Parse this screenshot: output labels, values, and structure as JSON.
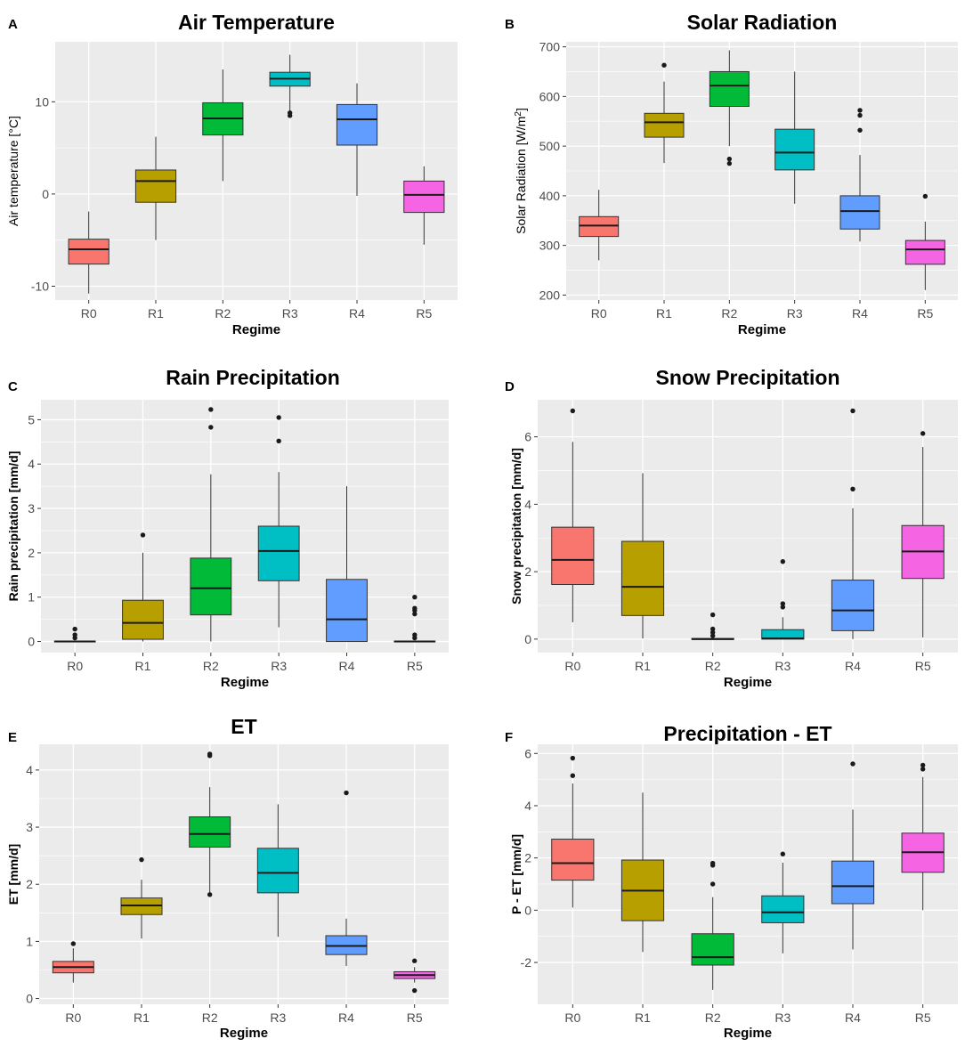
{
  "colors": {
    "panel_bg": "#ebebeb",
    "grid": "#ffffff",
    "tick_text": "#4d4d4d",
    "R0": "#f8766d",
    "R1": "#b79f00",
    "R2": "#00ba38",
    "R3": "#00bfc4",
    "R4": "#619cff",
    "R5": "#f564e3"
  },
  "chart_data": [
    {
      "id": "A",
      "letter": "A",
      "type": "boxplot",
      "title": "Air Temperature",
      "xlabel": "Regime",
      "ylabel": "Air temperature [°C]",
      "categories": [
        "R0",
        "R1",
        "R2",
        "R3",
        "R4",
        "R5"
      ],
      "ylim": [
        -11.5,
        16.5
      ],
      "yticks": [
        -10,
        0,
        10
      ],
      "ytick_labels": [
        "-10",
        "0",
        "10"
      ],
      "boxes": [
        {
          "min": -10.8,
          "q1": -7.6,
          "median": -6.0,
          "q3": -4.9,
          "max": -1.9,
          "outliers": []
        },
        {
          "min": -5.0,
          "q1": -0.9,
          "median": 1.4,
          "q3": 2.6,
          "max": 6.2,
          "outliers": []
        },
        {
          "min": 1.4,
          "q1": 6.4,
          "median": 8.2,
          "q3": 9.9,
          "max": 13.5,
          "outliers": []
        },
        {
          "min": 9.0,
          "q1": 11.7,
          "median": 12.5,
          "q3": 13.2,
          "max": 15.1,
          "outliers": [
            8.5,
            8.8
          ]
        },
        {
          "min": -0.2,
          "q1": 5.3,
          "median": 8.1,
          "q3": 9.7,
          "max": 12.0,
          "outliers": []
        },
        {
          "min": -5.5,
          "q1": -2.0,
          "median": -0.1,
          "q3": 1.4,
          "max": 3.0,
          "outliers": []
        }
      ]
    },
    {
      "id": "B",
      "letter": "B",
      "type": "boxplot",
      "title": "Solar Radiation",
      "xlabel": "Regime",
      "ylabel": "Solar Radiation [W/m",
      "ylabel_sup": "2",
      "ylabel_end": "]",
      "categories": [
        "R0",
        "R1",
        "R2",
        "R3",
        "R4",
        "R5"
      ],
      "ylim": [
        190,
        710
      ],
      "yticks": [
        200,
        300,
        400,
        500,
        600,
        700
      ],
      "ytick_labels": [
        "200",
        "300",
        "400",
        "500",
        "600",
        "700"
      ],
      "boxes": [
        {
          "min": 270,
          "q1": 318,
          "median": 340,
          "q3": 358,
          "max": 412,
          "outliers": []
        },
        {
          "min": 466,
          "q1": 518,
          "median": 548,
          "q3": 566,
          "max": 630,
          "outliers": [
            663
          ]
        },
        {
          "min": 500,
          "q1": 580,
          "median": 622,
          "q3": 650,
          "max": 693,
          "outliers": [
            465,
            474
          ]
        },
        {
          "min": 384,
          "q1": 452,
          "median": 487,
          "q3": 534,
          "max": 650,
          "outliers": []
        },
        {
          "min": 308,
          "q1": 333,
          "median": 369,
          "q3": 400,
          "max": 482,
          "outliers": [
            532,
            562,
            572
          ]
        },
        {
          "min": 210,
          "q1": 262,
          "median": 292,
          "q3": 310,
          "max": 348,
          "outliers": [
            399
          ]
        }
      ]
    },
    {
      "id": "C",
      "letter": "C",
      "type": "boxplot",
      "title": "Rain Precipitation",
      "xlabel": "Regime",
      "ylabel": "Rain precipitation [mm/d]",
      "categories": [
        "R0",
        "R1",
        "R2",
        "R3",
        "R4",
        "R5"
      ],
      "ylim": [
        -0.25,
        5.45
      ],
      "yticks": [
        0,
        1,
        2,
        3,
        4,
        5
      ],
      "ytick_labels": [
        "0",
        "1",
        "2",
        "3",
        "4",
        "5"
      ],
      "boxes": [
        {
          "min": 0,
          "q1": 0,
          "median": 0,
          "q3": 0.01,
          "max": 0.02,
          "outliers": [
            0.08,
            0.15,
            0.28
          ]
        },
        {
          "min": 0,
          "q1": 0.05,
          "median": 0.42,
          "q3": 0.93,
          "max": 2.0,
          "outliers": [
            2.4
          ]
        },
        {
          "min": 0,
          "q1": 0.6,
          "median": 1.2,
          "q3": 1.88,
          "max": 3.77,
          "outliers": [
            4.83,
            5.23
          ]
        },
        {
          "min": 0.32,
          "q1": 1.37,
          "median": 2.04,
          "q3": 2.6,
          "max": 3.82,
          "outliers": [
            4.52,
            5.05
          ]
        },
        {
          "min": 0,
          "q1": 0,
          "median": 0.5,
          "q3": 1.4,
          "max": 3.5,
          "outliers": []
        },
        {
          "min": 0,
          "q1": 0,
          "median": 0,
          "q3": 0.01,
          "max": 0.02,
          "outliers": [
            0.08,
            0.15,
            0.62,
            0.7,
            0.75,
            1.0
          ]
        }
      ]
    },
    {
      "id": "D",
      "letter": "D",
      "type": "boxplot",
      "title": "Snow Precipitation",
      "xlabel": "Regime",
      "ylabel": "Snow precipitation [mm/d]",
      "categories": [
        "R0",
        "R1",
        "R2",
        "R3",
        "R4",
        "R5"
      ],
      "ylim": [
        -0.4,
        7.1
      ],
      "yticks": [
        0,
        2,
        4,
        6
      ],
      "ytick_labels": [
        "0",
        "2",
        "4",
        "6"
      ],
      "boxes": [
        {
          "min": 0.5,
          "q1": 1.62,
          "median": 2.35,
          "q3": 3.32,
          "max": 5.85,
          "outliers": [
            6.77
          ]
        },
        {
          "min": 0.02,
          "q1": 0.7,
          "median": 1.55,
          "q3": 2.9,
          "max": 4.92,
          "outliers": []
        },
        {
          "min": 0,
          "q1": 0,
          "median": 0,
          "q3": 0.02,
          "max": 0.05,
          "outliers": [
            0.1,
            0.2,
            0.3,
            0.72
          ]
        },
        {
          "min": 0,
          "q1": 0,
          "median": 0.02,
          "q3": 0.28,
          "max": 0.65,
          "outliers": [
            0.95,
            1.05,
            2.3
          ]
        },
        {
          "min": 0,
          "q1": 0.25,
          "median": 0.85,
          "q3": 1.75,
          "max": 3.88,
          "outliers": [
            4.45,
            6.77
          ]
        },
        {
          "min": 0.05,
          "q1": 1.8,
          "median": 2.6,
          "q3": 3.37,
          "max": 5.7,
          "outliers": [
            6.1
          ]
        }
      ]
    },
    {
      "id": "E",
      "letter": "E",
      "type": "boxplot",
      "title": "ET",
      "xlabel": "Regime",
      "ylabel": "ET [mm/d]",
      "categories": [
        "R0",
        "R1",
        "R2",
        "R3",
        "R4",
        "R5"
      ],
      "ylim": [
        -0.1,
        4.45
      ],
      "yticks": [
        0,
        1,
        2,
        3,
        4
      ],
      "ytick_labels": [
        "0",
        "1",
        "2",
        "3",
        "4"
      ],
      "boxes": [
        {
          "min": 0.28,
          "q1": 0.45,
          "median": 0.55,
          "q3": 0.65,
          "max": 0.88,
          "outliers": [
            0.96
          ]
        },
        {
          "min": 1.05,
          "q1": 1.47,
          "median": 1.63,
          "q3": 1.76,
          "max": 2.08,
          "outliers": [
            2.43
          ]
        },
        {
          "min": 1.82,
          "q1": 2.65,
          "median": 2.88,
          "q3": 3.18,
          "max": 3.7,
          "outliers": [
            1.82,
            4.25,
            4.28
          ]
        },
        {
          "min": 1.08,
          "q1": 1.85,
          "median": 2.2,
          "q3": 2.63,
          "max": 3.4,
          "outliers": []
        },
        {
          "min": 0.57,
          "q1": 0.77,
          "median": 0.92,
          "q3": 1.1,
          "max": 1.4,
          "outliers": [
            3.6
          ]
        },
        {
          "min": 0.28,
          "q1": 0.35,
          "median": 0.41,
          "q3": 0.47,
          "max": 0.55,
          "outliers": [
            0.14,
            0.66
          ]
        }
      ]
    },
    {
      "id": "F",
      "letter": "F",
      "type": "boxplot",
      "title": "Precipitation - ET",
      "xlabel": "Regime",
      "ylabel": "P - ET [mm/d]",
      "categories": [
        "R0",
        "R1",
        "R2",
        "R3",
        "R4",
        "R5"
      ],
      "ylim": [
        -3.6,
        6.35
      ],
      "yticks": [
        -2,
        0,
        2,
        4,
        6
      ],
      "ytick_labels": [
        "-2",
        "0",
        "2",
        "4",
        "6"
      ],
      "boxes": [
        {
          "min": 0.1,
          "q1": 1.15,
          "median": 1.8,
          "q3": 2.72,
          "max": 4.85,
          "outliers": [
            5.15,
            5.82
          ]
        },
        {
          "min": -1.6,
          "q1": -0.4,
          "median": 0.75,
          "q3": 1.92,
          "max": 4.5,
          "outliers": []
        },
        {
          "min": -3.05,
          "q1": -2.1,
          "median": -1.8,
          "q3": -0.9,
          "max": 0.5,
          "outliers": [
            1.0,
            1.72,
            1.8
          ]
        },
        {
          "min": -1.65,
          "q1": -0.48,
          "median": -0.08,
          "q3": 0.55,
          "max": 1.82,
          "outliers": [
            2.15
          ]
        },
        {
          "min": -1.5,
          "q1": 0.25,
          "median": 0.92,
          "q3": 1.88,
          "max": 3.85,
          "outliers": [
            5.6
          ]
        },
        {
          "min": 0,
          "q1": 1.45,
          "median": 2.22,
          "q3": 2.95,
          "max": 5.1,
          "outliers": [
            5.4,
            5.55
          ]
        }
      ]
    }
  ]
}
